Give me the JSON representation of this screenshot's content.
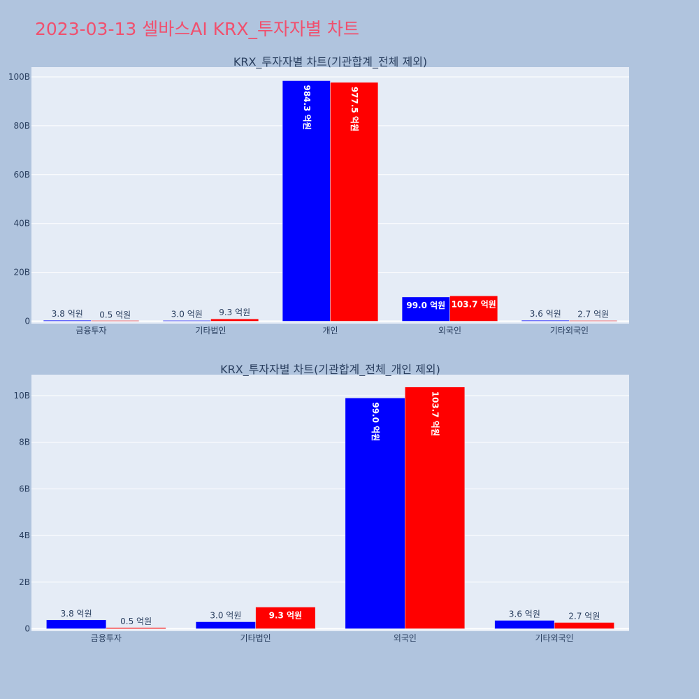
{
  "page_title": "2023-03-13 셀바스AI KRX_투자자별 차트",
  "colors": {
    "buy": "#0000ff",
    "sell": "#ff0000",
    "plot_bg": "#e5ecf6",
    "page_bg": "#b0c4de",
    "title": "#f0506e"
  },
  "chart_data": [
    {
      "type": "bar",
      "title": "KRX_투자자별 차트(기관합계_전체 제외)",
      "categories": [
        "금융투자",
        "기타법인",
        "개인",
        "외국인",
        "기타외국인"
      ],
      "series": [
        {
          "values": [
            380000000,
            300000000,
            98430000000,
            9900000000,
            360000000
          ],
          "labels": [
            "3.8 억원",
            "3.0 억원",
            "984.3 억원",
            "99.0 억원",
            "3.6 억원"
          ]
        },
        {
          "values": [
            50000000,
            930000000,
            97750000000,
            10370000000,
            270000000
          ],
          "labels": [
            "0.5 억원",
            "9.3 억원",
            "977.5 억원",
            "103.7 억원",
            "2.7 억원"
          ]
        }
      ],
      "ylim": [
        0,
        104000000000
      ],
      "yticks": [
        0,
        20000000000,
        40000000000,
        60000000000,
        80000000000,
        100000000000
      ],
      "ytick_labels": [
        "0",
        "20B",
        "40B",
        "60B",
        "80B",
        "100B"
      ],
      "grid": true
    },
    {
      "type": "bar",
      "title": "KRX_투자자별 차트(기관합계_전체_개인 제외)",
      "categories": [
        "금융투자",
        "기타법인",
        "외국인",
        "기타외국인"
      ],
      "series": [
        {
          "values": [
            380000000,
            300000000,
            9900000000,
            360000000
          ],
          "labels": [
            "3.8 억원",
            "3.0 억원",
            "99.0 억원",
            "3.6 억원"
          ]
        },
        {
          "values": [
            50000000,
            930000000,
            10370000000,
            270000000
          ],
          "labels": [
            "0.5 억원",
            "9.3 억원",
            "103.7 억원",
            "2.7 억원"
          ]
        }
      ],
      "ylim": [
        0,
        10900000000
      ],
      "yticks": [
        0,
        2000000000,
        4000000000,
        6000000000,
        8000000000,
        10000000000
      ],
      "ytick_labels": [
        "0",
        "2B",
        "4B",
        "6B",
        "8B",
        "10B"
      ],
      "grid": true
    }
  ]
}
